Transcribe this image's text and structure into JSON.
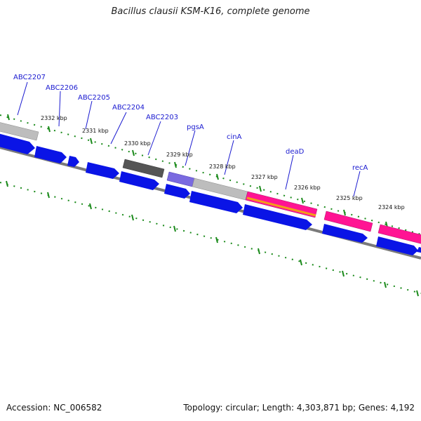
{
  "title": "Bacillus clausii KSM-K16, complete genome",
  "footer": {
    "accession": "Accession: NC_006582",
    "topology": "Topology: circular; Length: 4,303,871 bp; Genes: 4,192"
  },
  "colors": {
    "cds_blue": "#0a14e6",
    "backbone": "#808080",
    "tick_green": "#1a8a1a",
    "label_blue": "#1a1ad0",
    "gene_gray": "#bdbdbd",
    "gene_dark": "#555555",
    "gene_purple": "#7a6ae0",
    "gene_pink": "#ff1493",
    "gene_orange": "#f39c1a"
  },
  "gene_labels": [
    "ABC2207",
    "ABC2206",
    "ABC2205",
    "ABC2204",
    "ABC2203",
    "pgsA",
    "cinA",
    "deaD",
    "recA"
  ],
  "kbp_labels": [
    "2332 kbp",
    "2331 kbp",
    "2330 kbp",
    "2329 kbp",
    "2328 kbp",
    "2327 kbp",
    "2326 kbp",
    "2325 kbp",
    "2324 kbp"
  ]
}
